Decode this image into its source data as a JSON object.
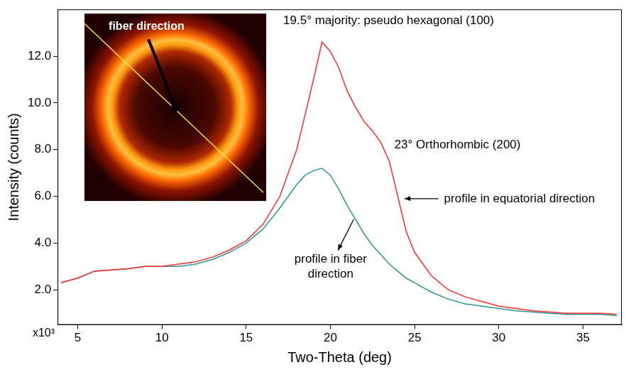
{
  "chart_data": {
    "type": "line",
    "x_label": "Two-Theta (deg)",
    "y_label": "Intensity (counts)",
    "y_multiplier": "x10³",
    "annotations": [
      "19.5° majority: pseudo hexagonal (100)",
      "23° Orthorhombic (200)"
    ],
    "inset": {
      "label": "fiber direction"
    },
    "x": [
      4,
      5,
      6,
      7,
      8,
      9,
      10,
      11,
      12,
      13,
      14,
      15,
      16,
      17,
      18,
      18.5,
      19,
      19.5,
      20,
      20.5,
      21,
      21.5,
      22,
      22.5,
      23,
      23.5,
      24,
      24.5,
      25,
      26,
      27,
      28,
      29,
      30,
      31,
      32,
      33,
      34,
      35,
      36,
      37
    ],
    "series": [
      {
        "name": "profile in equatorial direction",
        "color": "#ff2a2a",
        "values": [
          2.3,
          2.5,
          2.8,
          2.85,
          2.9,
          3.0,
          3.0,
          3.1,
          3.2,
          3.4,
          3.7,
          4.1,
          4.8,
          6.0,
          8.0,
          9.5,
          11.0,
          12.6,
          12.2,
          11.5,
          10.5,
          9.8,
          9.2,
          8.8,
          8.3,
          7.5,
          6.0,
          4.5,
          3.6,
          2.6,
          2.0,
          1.7,
          1.5,
          1.3,
          1.2,
          1.1,
          1.05,
          1.0,
          1.0,
          1.0,
          0.95
        ]
      },
      {
        "name": "profile in fiber direction",
        "color": "#2b9494",
        "values": [
          2.3,
          2.5,
          2.8,
          2.85,
          2.9,
          3.0,
          3.0,
          3.0,
          3.1,
          3.3,
          3.6,
          4.0,
          4.6,
          5.5,
          6.5,
          6.9,
          7.1,
          7.2,
          6.9,
          6.3,
          5.6,
          5.0,
          4.4,
          3.9,
          3.5,
          3.1,
          2.8,
          2.5,
          2.3,
          1.9,
          1.6,
          1.4,
          1.3,
          1.2,
          1.1,
          1.05,
          1.0,
          0.95,
          0.95,
          0.95,
          0.9
        ]
      }
    ],
    "xlim": [
      3.8,
      37.3
    ],
    "xticks": [
      5,
      10,
      15,
      20,
      25,
      30,
      35
    ],
    "ylim": [
      0.5,
      14
    ],
    "yticks": [
      {
        "value": 2,
        "label": "2.0"
      },
      {
        "value": 4,
        "label": "4.0"
      },
      {
        "value": 6,
        "label": "6.0"
      },
      {
        "value": 8,
        "label": "8.0"
      },
      {
        "value": 10,
        "label": "10.0"
      },
      {
        "value": 12,
        "label": "12.0"
      }
    ],
    "grid": false
  }
}
